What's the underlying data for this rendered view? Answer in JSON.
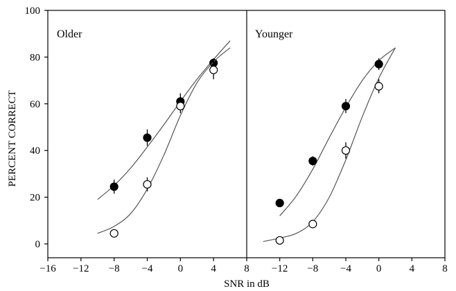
{
  "chart_data": {
    "type": "scatter",
    "ylabel": "PERCENT CORRECT",
    "xlabel": "SNR in dB",
    "y_ticks": [
      "0",
      "20",
      "40",
      "60",
      "80",
      "100"
    ],
    "ylim": [
      0,
      100
    ],
    "grid": false,
    "panels": [
      {
        "title": "Older",
        "xlim": [
          -16,
          8
        ],
        "x_ticks": [
          "−16",
          "−12",
          "−8",
          "−4",
          "0",
          "4",
          "8"
        ],
        "series": [
          {
            "marker": "filled-circle",
            "points": [
              {
                "x": -8,
                "y": 24.5,
                "err": 3
              },
              {
                "x": -4,
                "y": 45.5,
                "err": 3.5
              },
              {
                "x": 0,
                "y": 61,
                "err": 3.5
              },
              {
                "x": 4,
                "y": 77.5,
                "err": 2
              }
            ],
            "fit": [
              [
                -10,
                19
              ],
              [
                -8,
                25
              ],
              [
                -6,
                32.5
              ],
              [
                -4,
                41.5
              ],
              [
                -2,
                51
              ],
              [
                0,
                61
              ],
              [
                2,
                70.5
              ],
              [
                4,
                79
              ],
              [
                6,
                87
              ]
            ]
          },
          {
            "marker": "open-circle",
            "points": [
              {
                "x": -8,
                "y": 4.5,
                "err": 0
              },
              {
                "x": -4,
                "y": 25.5,
                "err": 3
              },
              {
                "x": 0,
                "y": 59,
                "err": 3
              },
              {
                "x": 4,
                "y": 74.5,
                "err": 4
              }
            ],
            "fit": [
              [
                -10,
                4.5
              ],
              [
                -8,
                7.5
              ],
              [
                -6,
                13
              ],
              [
                -4,
                23.5
              ],
              [
                -2,
                38
              ],
              [
                0,
                55
              ],
              [
                2,
                69
              ],
              [
                4,
                78
              ],
              [
                6,
                84
              ]
            ]
          }
        ]
      },
      {
        "title": "Younger",
        "xlim": [
          -16,
          8
        ],
        "x_ticks": [
          "−12",
          "−8",
          "−4",
          "0",
          "4",
          "8"
        ],
        "series": [
          {
            "marker": "filled-circle",
            "points": [
              {
                "x": -12,
                "y": 17.5,
                "err": 1.5
              },
              {
                "x": -8,
                "y": 35.5,
                "err": 2
              },
              {
                "x": -4,
                "y": 59,
                "err": 3
              },
              {
                "x": 0,
                "y": 77,
                "err": 2.5
              }
            ],
            "fit": [
              [
                -12,
                12
              ],
              [
                -10,
                20.5
              ],
              [
                -8,
                32
              ],
              [
                -6,
                45.5
              ],
              [
                -4,
                58.5
              ],
              [
                -2,
                70
              ],
              [
                0,
                78.5
              ],
              [
                2,
                84
              ]
            ]
          },
          {
            "marker": "open-circle",
            "points": [
              {
                "x": -12,
                "y": 1.5,
                "err": 0
              },
              {
                "x": -8,
                "y": 8.5,
                "err": 0
              },
              {
                "x": -4,
                "y": 40,
                "err": 3.5
              },
              {
                "x": 0,
                "y": 67.5,
                "err": 3
              }
            ],
            "fit": [
              [
                -14,
                1
              ],
              [
                -12,
                2.5
              ],
              [
                -10,
                4.5
              ],
              [
                -8,
                9.5
              ],
              [
                -6,
                20
              ],
              [
                -4,
                36
              ],
              [
                -2,
                54.5
              ],
              [
                0,
                71
              ],
              [
                2,
                84
              ]
            ]
          }
        ]
      }
    ]
  }
}
